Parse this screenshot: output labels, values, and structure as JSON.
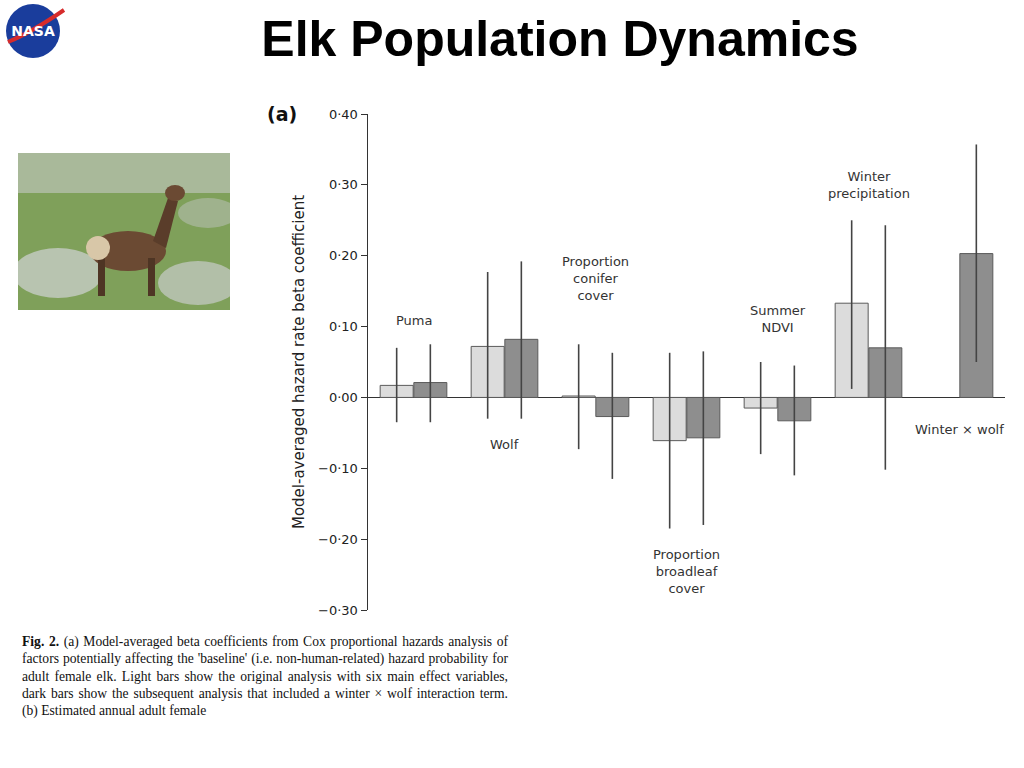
{
  "slide": {
    "title": "Elk Population Dynamics",
    "logo": "NASA",
    "caption_label": "Fig. 2.",
    "caption": "(a) Model-averaged beta coefficients from Cox proportional hazards analysis of factors potentially affecting the 'baseline' (i.e. non-human-related) hazard probability for adult female elk. Light bars show the original analysis with six main effect variables, dark bars show the subsequent analysis that included a winter × wolf interaction term. (b) Estimated annual adult female"
  },
  "chart_data": {
    "type": "bar",
    "panel_label": "(a)",
    "y_label": "Model-averaged hazard rate beta coefficient",
    "categories": [
      "Puma",
      "Wolf",
      "Proportion conifer cover",
      "Proportion broadleaf cover",
      "Summer NDVI",
      "Winter precipitation",
      "Winter × wolf"
    ],
    "series": [
      {
        "color": "#dcdcdc",
        "values": [
          0.017,
          0.072,
          0.002,
          -0.061,
          -0.015,
          0.133,
          null
        ],
        "ci_low": [
          -0.035,
          -0.03,
          -0.073,
          -0.185,
          -0.08,
          0.012,
          null
        ],
        "ci_high": [
          0.07,
          0.177,
          0.075,
          0.063,
          0.05,
          0.25,
          null
        ]
      },
      {
        "color": "#8e8e8e",
        "values": [
          0.021,
          0.082,
          -0.027,
          -0.057,
          -0.033,
          0.07,
          0.203
        ],
        "ci_low": [
          -0.035,
          -0.03,
          -0.115,
          -0.18,
          -0.11,
          -0.102,
          0.05
        ],
        "ci_high": [
          0.075,
          0.192,
          0.063,
          0.065,
          0.045,
          0.243,
          0.357
        ]
      }
    ],
    "ylim": [
      -0.3,
      0.4
    ],
    "yticks": [
      {
        "value": 0.4,
        "label": "0·40"
      },
      {
        "value": 0.3,
        "label": "0·30"
      },
      {
        "value": 0.2,
        "label": "0·20"
      },
      {
        "value": 0.1,
        "label": "0·10"
      },
      {
        "value": 0,
        "label": "0·00"
      },
      {
        "value": -0.1,
        "label": "−0·10"
      },
      {
        "value": -0.2,
        "label": "−0·20"
      },
      {
        "value": -0.3,
        "label": "−0·30"
      }
    ],
    "grid": false,
    "tick_labels": "y"
  }
}
